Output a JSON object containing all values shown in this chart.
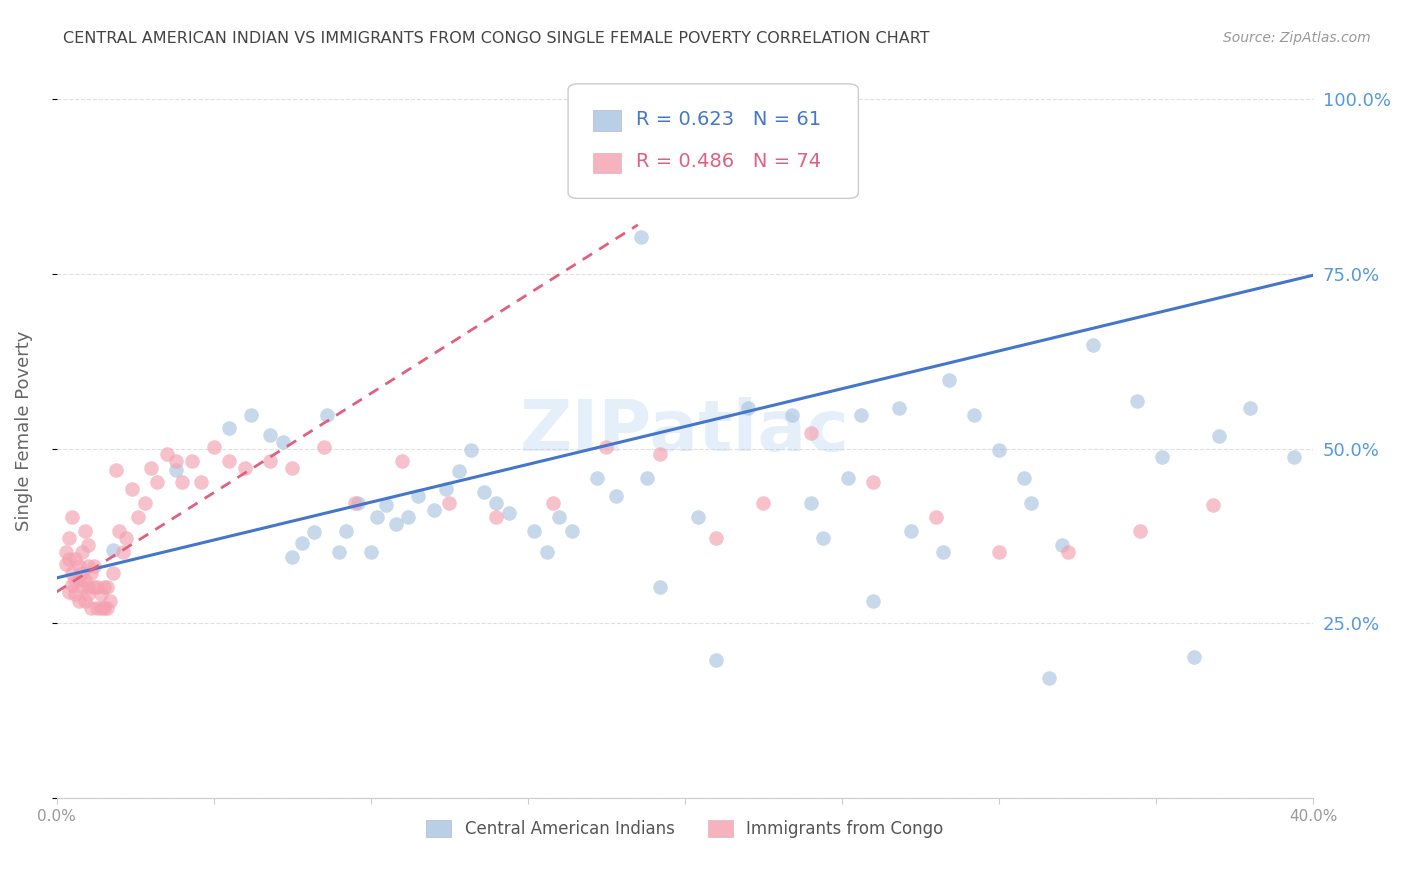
{
  "title": "CENTRAL AMERICAN INDIAN VS IMMIGRANTS FROM CONGO SINGLE FEMALE POVERTY CORRELATION CHART",
  "source": "Source: ZipAtlas.com",
  "ylabel": "Single Female Poverty",
  "legend_blue_r": "R = 0.623",
  "legend_blue_n": "N = 61",
  "legend_pink_r": "R = 0.486",
  "legend_pink_n": "N = 74",
  "legend_blue_label": "Central American Indians",
  "legend_pink_label": "Immigrants from Congo",
  "blue_color": "#a8c4e0",
  "pink_color": "#f4a0b0",
  "trend_blue_color": "#4477cc",
  "trend_pink_color": "#e06080",
  "watermark": "ZIPatlас",
  "blue_scatter_x": [
    0.018,
    0.038,
    0.055,
    0.062,
    0.068,
    0.072,
    0.075,
    0.078,
    0.082,
    0.086,
    0.09,
    0.092,
    0.096,
    0.1,
    0.102,
    0.105,
    0.108,
    0.112,
    0.115,
    0.12,
    0.124,
    0.128,
    0.132,
    0.136,
    0.14,
    0.144,
    0.152,
    0.156,
    0.16,
    0.164,
    0.172,
    0.178,
    0.188,
    0.192,
    0.204,
    0.21,
    0.22,
    0.234,
    0.24,
    0.244,
    0.252,
    0.26,
    0.268,
    0.272,
    0.284,
    0.292,
    0.3,
    0.308,
    0.316,
    0.33,
    0.344,
    0.352,
    0.362,
    0.37,
    0.38,
    0.394,
    0.31,
    0.32,
    0.256,
    0.282,
    0.186
  ],
  "blue_scatter_y": [
    0.355,
    0.47,
    0.53,
    0.548,
    0.52,
    0.51,
    0.345,
    0.365,
    0.38,
    0.548,
    0.352,
    0.382,
    0.422,
    0.352,
    0.402,
    0.42,
    0.392,
    0.402,
    0.432,
    0.412,
    0.442,
    0.468,
    0.498,
    0.438,
    0.422,
    0.408,
    0.382,
    0.352,
    0.402,
    0.382,
    0.458,
    0.432,
    0.458,
    0.302,
    0.402,
    0.198,
    0.558,
    0.548,
    0.422,
    0.372,
    0.458,
    0.282,
    0.558,
    0.382,
    0.598,
    0.548,
    0.498,
    0.458,
    0.172,
    0.648,
    0.568,
    0.488,
    0.202,
    0.518,
    0.558,
    0.488,
    0.422,
    0.362,
    0.548,
    0.352,
    0.802
  ],
  "pink_scatter_x": [
    0.003,
    0.003,
    0.004,
    0.004,
    0.004,
    0.005,
    0.005,
    0.005,
    0.006,
    0.006,
    0.006,
    0.007,
    0.007,
    0.007,
    0.008,
    0.008,
    0.008,
    0.009,
    0.009,
    0.009,
    0.01,
    0.01,
    0.01,
    0.01,
    0.011,
    0.011,
    0.012,
    0.012,
    0.013,
    0.013,
    0.014,
    0.014,
    0.015,
    0.015,
    0.016,
    0.016,
    0.017,
    0.018,
    0.019,
    0.02,
    0.021,
    0.022,
    0.024,
    0.026,
    0.028,
    0.03,
    0.032,
    0.035,
    0.038,
    0.04,
    0.043,
    0.046,
    0.05,
    0.055,
    0.06,
    0.068,
    0.075,
    0.085,
    0.095,
    0.11,
    0.125,
    0.14,
    0.158,
    0.175,
    0.192,
    0.21,
    0.225,
    0.24,
    0.26,
    0.28,
    0.3,
    0.322,
    0.345,
    0.368
  ],
  "pink_scatter_y": [
    0.335,
    0.352,
    0.342,
    0.372,
    0.295,
    0.305,
    0.322,
    0.402,
    0.292,
    0.312,
    0.342,
    0.282,
    0.312,
    0.332,
    0.302,
    0.322,
    0.352,
    0.382,
    0.282,
    0.312,
    0.302,
    0.332,
    0.362,
    0.292,
    0.322,
    0.272,
    0.302,
    0.332,
    0.272,
    0.302,
    0.272,
    0.292,
    0.272,
    0.302,
    0.272,
    0.302,
    0.282,
    0.322,
    0.47,
    0.382,
    0.352,
    0.372,
    0.442,
    0.402,
    0.422,
    0.472,
    0.452,
    0.492,
    0.482,
    0.452,
    0.482,
    0.452,
    0.502,
    0.482,
    0.472,
    0.482,
    0.472,
    0.502,
    0.422,
    0.482,
    0.422,
    0.402,
    0.422,
    0.502,
    0.492,
    0.372,
    0.422,
    0.522,
    0.452,
    0.402,
    0.352,
    0.352,
    0.382,
    0.42
  ],
  "xlim": [
    0.0,
    0.4
  ],
  "ylim": [
    0.0,
    1.05
  ],
  "yticks": [
    0.0,
    0.25,
    0.5,
    0.75,
    1.0
  ],
  "ytick_labels_right": [
    "",
    "25.0%",
    "50.0%",
    "75.0%",
    "100.0%"
  ],
  "xticks": [
    0.0,
    0.05,
    0.1,
    0.15,
    0.2,
    0.25,
    0.3,
    0.35,
    0.4
  ],
  "xtick_labels": [
    "0.0%",
    "",
    "",
    "",
    "",
    "",
    "",
    "",
    "40.0%"
  ],
  "blue_trendline_x": [
    0.0,
    0.4
  ],
  "blue_trendline_y": [
    0.315,
    0.748
  ],
  "pink_trendline_x": [
    0.0,
    0.185
  ],
  "pink_trendline_y": [
    0.295,
    0.82
  ],
  "background_color": "#ffffff",
  "grid_color": "#dddddd",
  "title_color": "#444444",
  "right_axis_color": "#5599dd",
  "axis_tick_color": "#999999"
}
